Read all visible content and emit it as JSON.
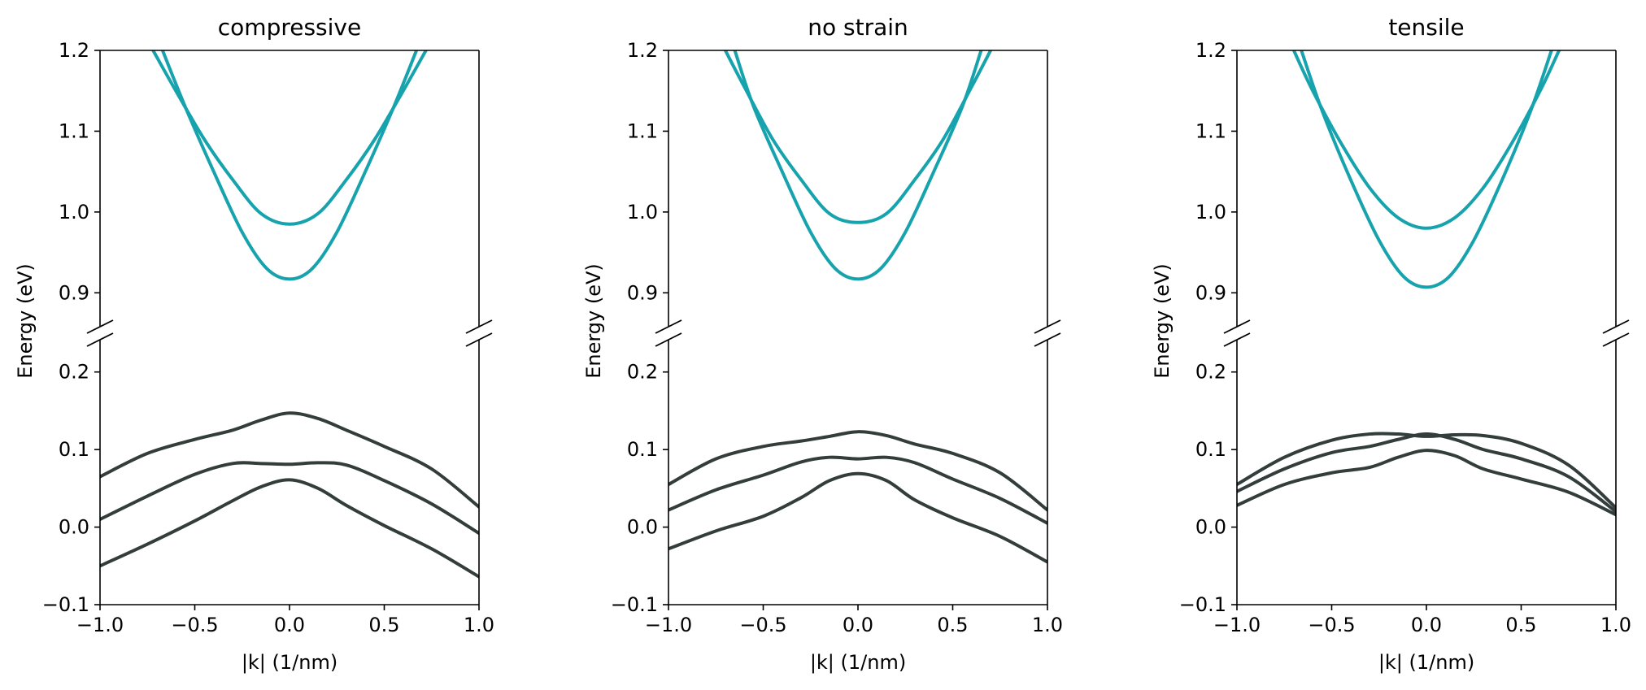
{
  "figure": {
    "colors": {
      "conduction": "#17a3ad",
      "valence": "#333d3b",
      "axes": "#000000"
    }
  },
  "chart_data": [
    {
      "type": "line",
      "title": "compressive",
      "xlabel": "|k| (1/nm)",
      "ylabel": "Energy (eV)",
      "xlim": [
        -1.0,
        1.0
      ],
      "xticks": [
        "−1.0",
        "−0.5",
        "0.0",
        "0.5",
        "1.0"
      ],
      "broken_y_axis": true,
      "upper_ylim": [
        0.85,
        1.2
      ],
      "upper_yticks": [
        "0.9",
        "1.0",
        "1.1",
        "1.2"
      ],
      "lower_ylim": [
        -0.1,
        0.25
      ],
      "lower_yticks": [
        "−0.1",
        "0.0",
        "0.1",
        "0.2"
      ],
      "conduction_bands": [
        {
          "x": [
            -0.72,
            -0.6,
            -0.45,
            -0.3,
            -0.15,
            0.0,
            0.15,
            0.3,
            0.45,
            0.6,
            0.72
          ],
          "y": [
            1.2,
            1.15,
            1.09,
            1.04,
            0.998,
            0.985,
            0.998,
            1.04,
            1.09,
            1.15,
            1.2
          ]
        },
        {
          "x": [
            -0.67,
            -0.55,
            -0.4,
            -0.25,
            -0.12,
            0.0,
            0.12,
            0.25,
            0.4,
            0.55,
            0.67
          ],
          "y": [
            1.2,
            1.13,
            1.05,
            0.975,
            0.93,
            0.917,
            0.93,
            0.975,
            1.05,
            1.13,
            1.2
          ]
        }
      ],
      "valence_bands": [
        {
          "x": [
            -1.0,
            -0.75,
            -0.5,
            -0.3,
            -0.15,
            0.0,
            0.15,
            0.3,
            0.5,
            0.75,
            1.0
          ],
          "y": [
            0.065,
            0.095,
            0.113,
            0.125,
            0.138,
            0.147,
            0.14,
            0.125,
            0.104,
            0.075,
            0.026
          ]
        },
        {
          "x": [
            -1.0,
            -0.75,
            -0.5,
            -0.3,
            -0.15,
            0.0,
            0.15,
            0.3,
            0.5,
            0.75,
            1.0
          ],
          "y": [
            0.01,
            0.04,
            0.068,
            0.082,
            0.082,
            0.081,
            0.083,
            0.08,
            0.06,
            0.03,
            -0.008
          ]
        },
        {
          "x": [
            -1.0,
            -0.75,
            -0.5,
            -0.3,
            -0.15,
            0.0,
            0.15,
            0.3,
            0.5,
            0.75,
            1.0
          ],
          "y": [
            -0.05,
            -0.022,
            0.008,
            0.034,
            0.052,
            0.061,
            0.05,
            0.028,
            0.002,
            -0.028,
            -0.064
          ]
        }
      ]
    },
    {
      "type": "line",
      "title": "no strain",
      "xlabel": "|k| (1/nm)",
      "ylabel": "Energy (eV)",
      "xlim": [
        -1.0,
        1.0
      ],
      "xticks": [
        "−1.0",
        "−0.5",
        "0.0",
        "0.5",
        "1.0"
      ],
      "broken_y_axis": true,
      "upper_ylim": [
        0.85,
        1.2
      ],
      "upper_yticks": [
        "0.9",
        "1.0",
        "1.1",
        "1.2"
      ],
      "lower_ylim": [
        -0.1,
        0.25
      ],
      "lower_yticks": [
        "−0.1",
        "0.0",
        "0.1",
        "0.2"
      ],
      "conduction_bands": [
        {
          "x": [
            -0.7,
            -0.6,
            -0.45,
            -0.3,
            -0.15,
            0.0,
            0.15,
            0.3,
            0.45,
            0.6,
            0.7
          ],
          "y": [
            1.2,
            1.155,
            1.09,
            1.04,
            0.998,
            0.987,
            0.998,
            1.04,
            1.09,
            1.155,
            1.2
          ]
        },
        {
          "x": [
            -0.65,
            -0.55,
            -0.4,
            -0.25,
            -0.12,
            0.0,
            0.12,
            0.25,
            0.4,
            0.55,
            0.65
          ],
          "y": [
            1.2,
            1.13,
            1.05,
            0.975,
            0.93,
            0.917,
            0.93,
            0.975,
            1.05,
            1.13,
            1.2
          ]
        }
      ],
      "valence_bands": [
        {
          "x": [
            -1.0,
            -0.75,
            -0.5,
            -0.3,
            -0.15,
            0.0,
            0.15,
            0.3,
            0.5,
            0.75,
            1.0
          ],
          "y": [
            0.055,
            0.088,
            0.104,
            0.111,
            0.117,
            0.123,
            0.118,
            0.107,
            0.095,
            0.07,
            0.022
          ]
        },
        {
          "x": [
            -1.0,
            -0.75,
            -0.5,
            -0.3,
            -0.15,
            0.0,
            0.15,
            0.3,
            0.5,
            0.75,
            1.0
          ],
          "y": [
            0.022,
            0.048,
            0.067,
            0.084,
            0.09,
            0.088,
            0.09,
            0.083,
            0.062,
            0.037,
            0.005
          ]
        },
        {
          "x": [
            -1.0,
            -0.75,
            -0.5,
            -0.3,
            -0.15,
            0.0,
            0.15,
            0.3,
            0.5,
            0.75,
            1.0
          ],
          "y": [
            -0.028,
            -0.005,
            0.014,
            0.038,
            0.06,
            0.069,
            0.06,
            0.035,
            0.012,
            -0.012,
            -0.045
          ]
        }
      ]
    },
    {
      "type": "line",
      "title": "tensile",
      "xlabel": "|k| (1/nm)",
      "ylabel": "Energy (eV)",
      "xlim": [
        -1.0,
        1.0
      ],
      "xticks": [
        "−1.0",
        "−0.5",
        "0.0",
        "0.5",
        "1.0"
      ],
      "broken_y_axis": true,
      "upper_ylim": [
        0.85,
        1.2
      ],
      "upper_yticks": [
        "0.9",
        "1.0",
        "1.1",
        "1.2"
      ],
      "lower_ylim": [
        -0.1,
        0.25
      ],
      "lower_yticks": [
        "−0.1",
        "0.0",
        "0.1",
        "0.2"
      ],
      "conduction_bands": [
        {
          "x": [
            -0.7,
            -0.6,
            -0.45,
            -0.3,
            -0.15,
            0.0,
            0.15,
            0.3,
            0.45,
            0.6,
            0.7
          ],
          "y": [
            1.2,
            1.15,
            1.085,
            1.03,
            0.993,
            0.98,
            0.993,
            1.03,
            1.085,
            1.15,
            1.2
          ]
        },
        {
          "x": [
            -0.66,
            -0.55,
            -0.4,
            -0.25,
            -0.12,
            0.0,
            0.12,
            0.25,
            0.4,
            0.55,
            0.66
          ],
          "y": [
            1.2,
            1.125,
            1.04,
            0.965,
            0.92,
            0.907,
            0.92,
            0.965,
            1.04,
            1.125,
            1.2
          ]
        }
      ],
      "valence_bands": [
        {
          "x": [
            -1.0,
            -0.75,
            -0.5,
            -0.3,
            -0.15,
            0.0,
            0.15,
            0.3,
            0.5,
            0.75,
            1.0
          ],
          "y": [
            0.055,
            0.09,
            0.112,
            0.12,
            0.12,
            0.117,
            0.119,
            0.118,
            0.108,
            0.08,
            0.025
          ]
        },
        {
          "x": [
            -1.0,
            -0.75,
            -0.5,
            -0.3,
            -0.15,
            0.0,
            0.15,
            0.3,
            0.5,
            0.75,
            1.0
          ],
          "y": [
            0.046,
            0.075,
            0.096,
            0.104,
            0.113,
            0.12,
            0.113,
            0.1,
            0.088,
            0.065,
            0.02
          ]
        },
        {
          "x": [
            -1.0,
            -0.75,
            -0.5,
            -0.3,
            -0.15,
            0.0,
            0.15,
            0.3,
            0.5,
            0.75,
            1.0
          ],
          "y": [
            0.028,
            0.055,
            0.07,
            0.077,
            0.09,
            0.099,
            0.092,
            0.075,
            0.062,
            0.045,
            0.016
          ]
        }
      ]
    }
  ]
}
